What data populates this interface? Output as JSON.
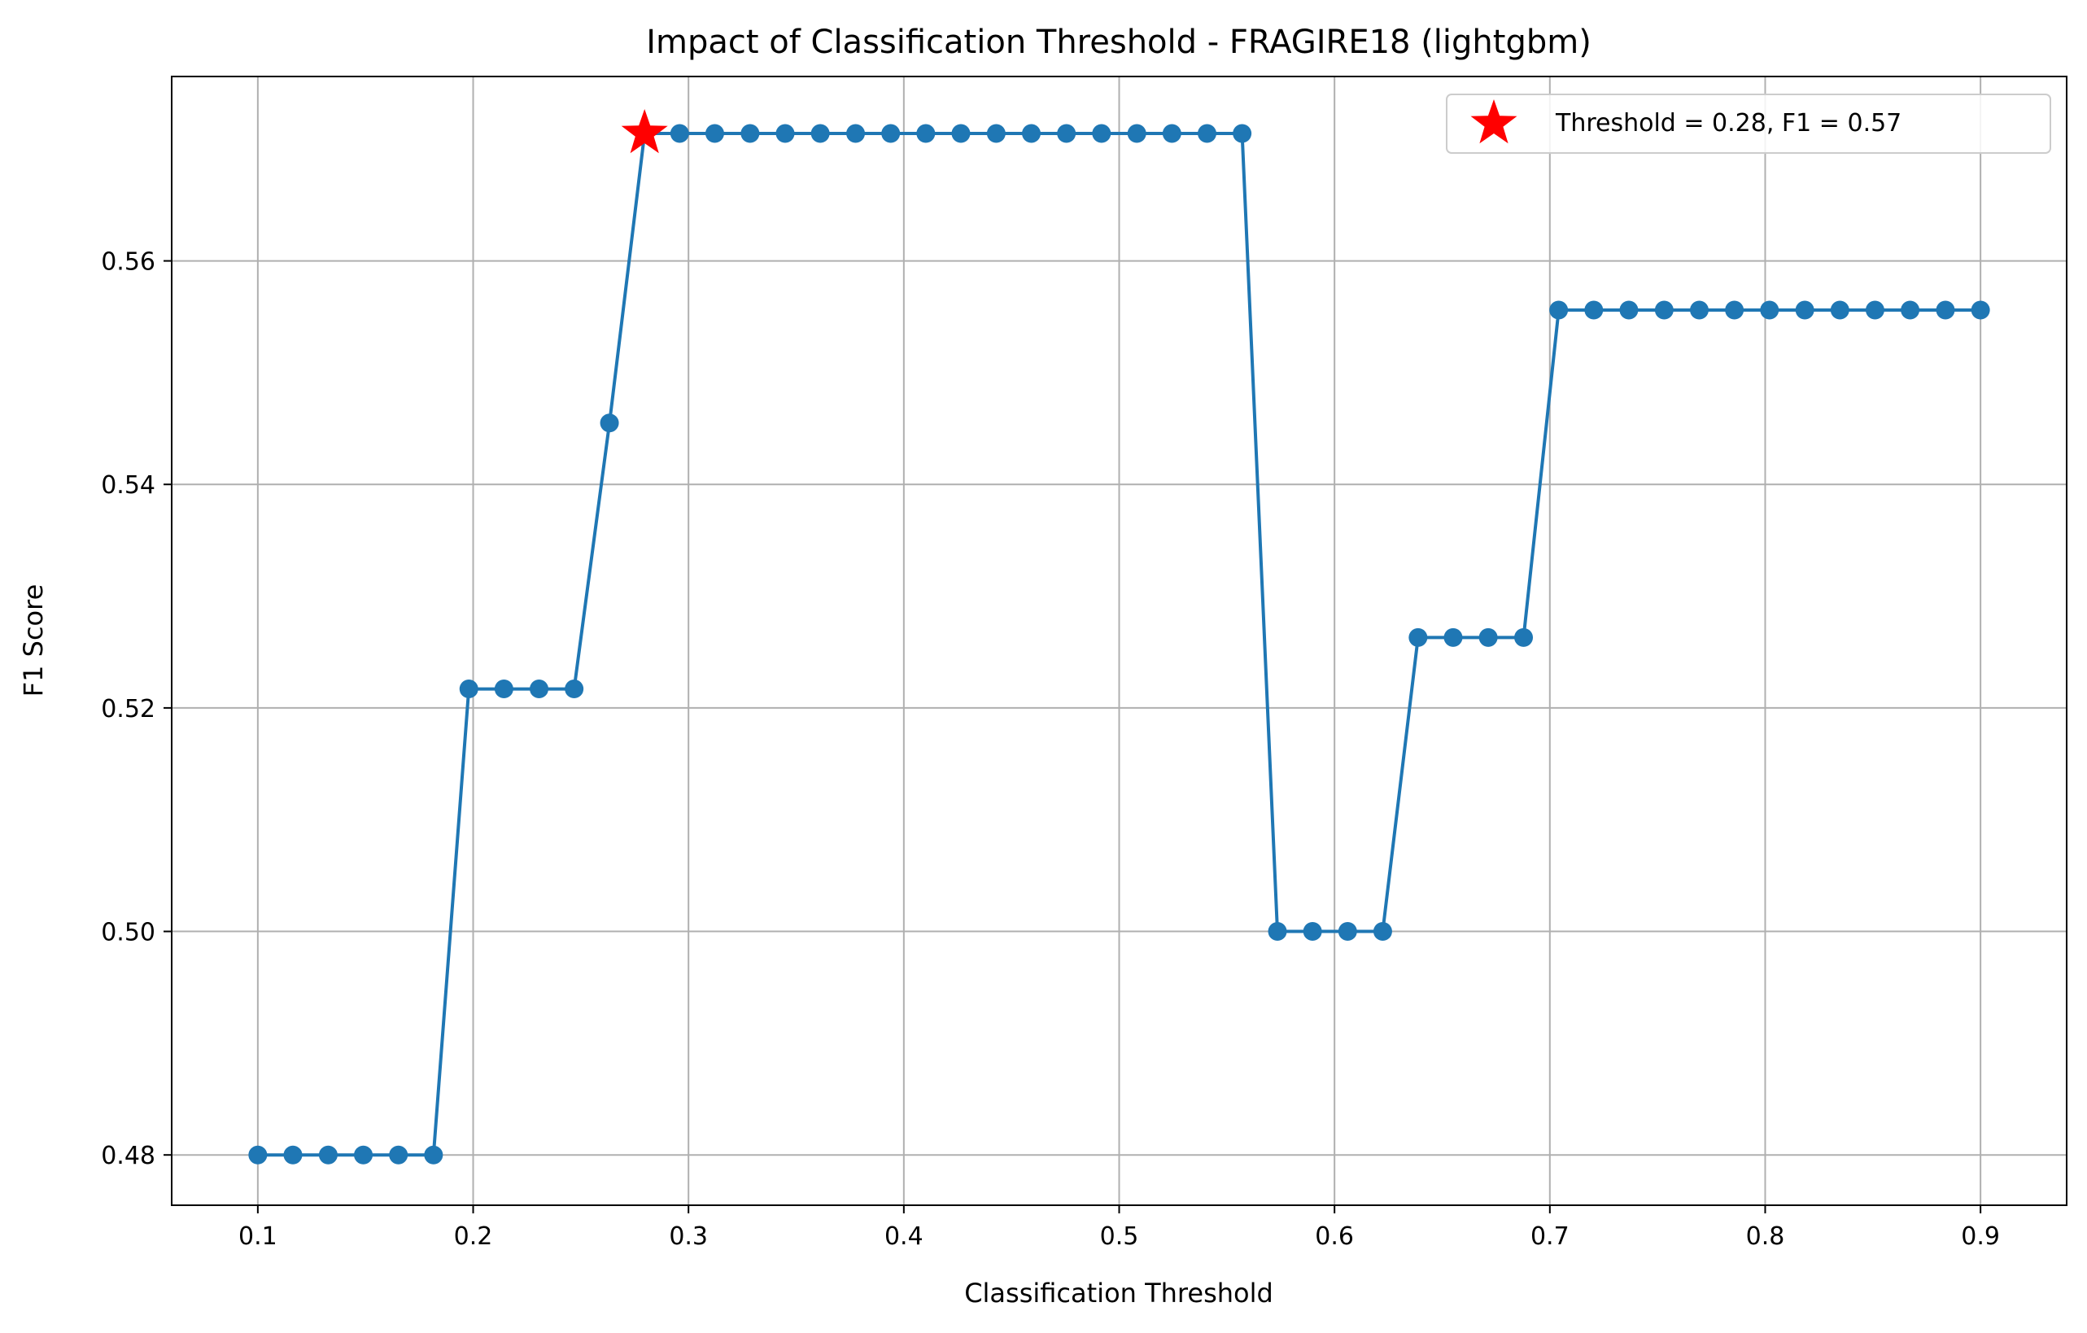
{
  "chart_data": {
    "type": "line",
    "title": "Impact of Classification Threshold - FRAGIRE18 (lightgbm)",
    "xlabel": "Classification Threshold",
    "ylabel": "F1 Score",
    "xlim": [
      0.06,
      0.94
    ],
    "ylim": [
      0.4755,
      0.5765
    ],
    "xticks": [
      "0.1",
      "0.2",
      "0.3",
      "0.4",
      "0.5",
      "0.6",
      "0.7",
      "0.8",
      "0.9"
    ],
    "yticks": [
      "0.48",
      "0.50",
      "0.52",
      "0.54",
      "0.56"
    ],
    "grid": true,
    "legend_position": "top-right",
    "series": [
      {
        "color": "#1f77b4",
        "marker": "circle",
        "x": [
          0.1,
          0.1163,
          0.1327,
          0.149,
          0.1653,
          0.1816,
          0.198,
          0.2143,
          0.2306,
          0.2469,
          0.2633,
          0.2796,
          0.2959,
          0.3122,
          0.3286,
          0.3449,
          0.3612,
          0.3776,
          0.3939,
          0.4102,
          0.4265,
          0.4429,
          0.4592,
          0.4755,
          0.4918,
          0.5082,
          0.5245,
          0.5408,
          0.5571,
          0.5735,
          0.5898,
          0.6061,
          0.6224,
          0.6388,
          0.6551,
          0.6714,
          0.6878,
          0.7041,
          0.7204,
          0.7367,
          0.7531,
          0.7694,
          0.7857,
          0.802,
          0.8184,
          0.8347,
          0.851,
          0.8673,
          0.8837,
          0.9
        ],
        "y": [
          0.48,
          0.48,
          0.48,
          0.48,
          0.48,
          0.48,
          0.5217,
          0.5217,
          0.5217,
          0.5217,
          0.5455,
          0.5714,
          0.5714,
          0.5714,
          0.5714,
          0.5714,
          0.5714,
          0.5714,
          0.5714,
          0.5714,
          0.5714,
          0.5714,
          0.5714,
          0.5714,
          0.5714,
          0.5714,
          0.5714,
          0.5714,
          0.5714,
          0.5,
          0.5,
          0.5,
          0.5,
          0.5263,
          0.5263,
          0.5263,
          0.5263,
          0.5556,
          0.5556,
          0.5556,
          0.5556,
          0.5556,
          0.5556,
          0.5556,
          0.5556,
          0.5556,
          0.5556,
          0.5556,
          0.5556,
          0.5556
        ]
      }
    ],
    "highlight": {
      "x": 0.2796,
      "y": 0.5714,
      "color": "#ff0000",
      "marker": "star",
      "label": "Threshold = 0.28, F1 = 0.57"
    }
  }
}
